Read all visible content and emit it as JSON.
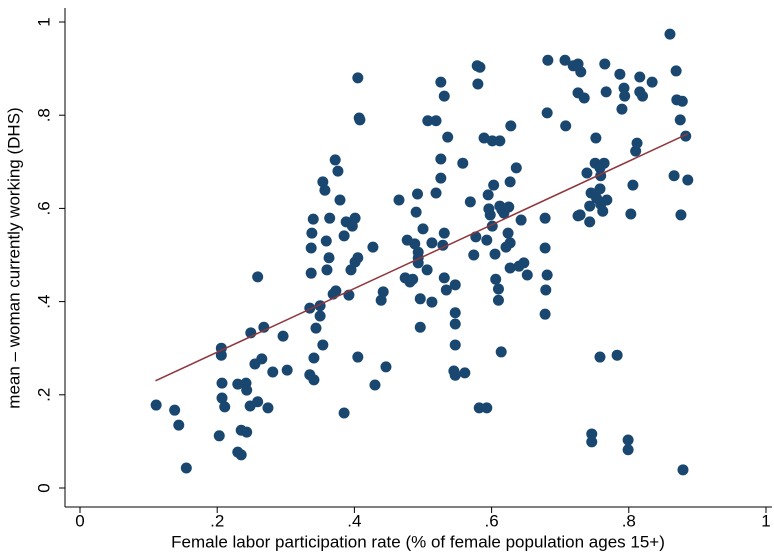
{
  "chart_data": {
    "type": "scatter",
    "xlabel": "Female labor participation rate (% of female population ages 15+)",
    "ylabel": "mean – woman currently working (DHS)",
    "xlim": [
      0,
      1
    ],
    "ylim": [
      0,
      1
    ],
    "xticks": [
      0,
      {
        "value": 0.2,
        "label": ".2"
      },
      {
        "value": 0.4,
        "label": ".4"
      },
      {
        "value": 0.6,
        "label": ".6"
      },
      {
        "value": 0.8,
        "label": ".8"
      },
      1
    ],
    "yticks": [
      0,
      {
        "value": 0.2,
        "label": ".2"
      },
      {
        "value": 0.4,
        "label": ".4"
      },
      {
        "value": 0.6,
        "label": ".6"
      },
      {
        "value": 0.8,
        "label": ".8"
      },
      1
    ],
    "grid": false,
    "series": [
      {
        "color": "#1a476f",
        "x": [
          0.111,
          0.138,
          0.144,
          0.155,
          0.206,
          0.206,
          0.207,
          0.207,
          0.211,
          0.203,
          0.23,
          0.242,
          0.243,
          0.248,
          0.235,
          0.243,
          0.23,
          0.235,
          0.249,
          0.255,
          0.259,
          0.259,
          0.265,
          0.268,
          0.274,
          0.281,
          0.296,
          0.302,
          0.335,
          0.335,
          0.341,
          0.341,
          0.344,
          0.35,
          0.35,
          0.354,
          0.337,
          0.337,
          0.338,
          0.34,
          0.354,
          0.357,
          0.359,
          0.363,
          0.36,
          0.369,
          0.364,
          0.372,
          0.376,
          0.379,
          0.385,
          0.373,
          0.388,
          0.385,
          0.392,
          0.395,
          0.397,
          0.401,
          0.405,
          0.407,
          0.408,
          0.401,
          0.405,
          0.405,
          0.427,
          0.43,
          0.439,
          0.442,
          0.446,
          0.465,
          0.474,
          0.477,
          0.481,
          0.485,
          0.488,
          0.49,
          0.492,
          0.493,
          0.493,
          0.493,
          0.496,
          0.496,
          0.5,
          0.506,
          0.507,
          0.513,
          0.513,
          0.519,
          0.519,
          0.526,
          0.526,
          0.529,
          0.526,
          0.531,
          0.531,
          0.531,
          0.536,
          0.534,
          0.547,
          0.547,
          0.547,
          0.545,
          0.547,
          0.547,
          0.558,
          0.561,
          0.569,
          0.574,
          0.577,
          0.579,
          0.583,
          0.58,
          0.582,
          0.589,
          0.593,
          0.595,
          0.596,
          0.593,
          0.598,
          0.601,
          0.601,
          0.603,
          0.605,
          0.606,
          0.61,
          0.61,
          0.612,
          0.612,
          0.614,
          0.615,
          0.618,
          0.621,
          0.624,
          0.627,
          0.625,
          0.627,
          0.627,
          0.628,
          0.636,
          0.64,
          0.643,
          0.647,
          0.652,
          0.678,
          0.678,
          0.679,
          0.678,
          0.681,
          0.682,
          0.681,
          0.707,
          0.708,
          0.719,
          0.726,
          0.73,
          0.726,
          0.735,
          0.726,
          0.729,
          0.739,
          0.743,
          0.743,
          0.745,
          0.746,
          0.746,
          0.751,
          0.752,
          0.753,
          0.758,
          0.758,
          0.759,
          0.762,
          0.764,
          0.765,
          0.768,
          0.767,
          0.759,
          0.758,
          0.783,
          0.787,
          0.79,
          0.793,
          0.794,
          0.799,
          0.799,
          0.803,
          0.806,
          0.81,
          0.816,
          0.812,
          0.816,
          0.82,
          0.834,
          0.86,
          0.866,
          0.869,
          0.87,
          0.878,
          0.875,
          0.876,
          0.879,
          0.883,
          0.886
        ],
        "values": [
          0.178,
          0.167,
          0.135,
          0.043,
          0.3,
          0.285,
          0.225,
          0.193,
          0.174,
          0.112,
          0.223,
          0.225,
          0.21,
          0.176,
          0.124,
          0.12,
          0.077,
          0.071,
          0.333,
          0.266,
          0.453,
          0.185,
          0.277,
          0.345,
          0.172,
          0.249,
          0.326,
          0.253,
          0.243,
          0.386,
          0.279,
          0.232,
          0.343,
          0.391,
          0.369,
          0.307,
          0.461,
          0.515,
          0.547,
          0.577,
          0.657,
          0.639,
          0.53,
          0.494,
          0.468,
          0.416,
          0.579,
          0.704,
          0.68,
          0.618,
          0.161,
          0.423,
          0.571,
          0.541,
          0.414,
          0.468,
          0.562,
          0.579,
          0.88,
          0.794,
          0.79,
          0.485,
          0.494,
          0.281,
          0.517,
          0.221,
          0.403,
          0.421,
          0.26,
          0.618,
          0.451,
          0.532,
          0.442,
          0.448,
          0.524,
          0.592,
          0.631,
          0.494,
          0.483,
          0.506,
          0.406,
          0.345,
          0.556,
          0.468,
          0.788,
          0.526,
          0.399,
          0.633,
          0.788,
          0.665,
          0.706,
          0.521,
          0.871,
          0.841,
          0.547,
          0.451,
          0.753,
          0.425,
          0.376,
          0.352,
          0.307,
          0.251,
          0.242,
          0.436,
          0.697,
          0.247,
          0.614,
          0.5,
          0.539,
          0.906,
          0.903,
          0.867,
          0.172,
          0.751,
          0.532,
          0.629,
          0.599,
          0.172,
          0.586,
          0.745,
          0.562,
          0.65,
          0.502,
          0.448,
          0.427,
          0.403,
          0.745,
          0.605,
          0.292,
          0.597,
          0.59,
          0.517,
          0.547,
          0.657,
          0.603,
          0.526,
          0.472,
          0.777,
          0.687,
          0.476,
          0.575,
          0.483,
          0.457,
          0.579,
          0.515,
          0.425,
          0.373,
          0.457,
          0.918,
          0.805,
          0.918,
          0.777,
          0.906,
          0.91,
          0.893,
          0.848,
          0.837,
          0.584,
          0.586,
          0.676,
          0.605,
          0.571,
          0.633,
          0.116,
          0.099,
          0.697,
          0.751,
          0.622,
          0.642,
          0.281,
          0.609,
          0.594,
          0.697,
          0.91,
          0.618,
          0.85,
          0.67,
          0.687,
          0.285,
          0.888,
          0.813,
          0.858,
          0.841,
          0.103,
          0.082,
          0.588,
          0.65,
          0.723,
          0.882,
          0.74,
          0.85,
          0.841,
          0.871,
          0.974,
          0.67,
          0.895,
          0.833,
          0.83,
          0.79,
          0.586,
          0.039,
          0.755,
          0.661
        ]
      },
      {
        "type": "line",
        "color": "#90353b",
        "x": [
          0.11,
          0.886
        ],
        "values": [
          0.23,
          0.76
        ]
      }
    ]
  }
}
